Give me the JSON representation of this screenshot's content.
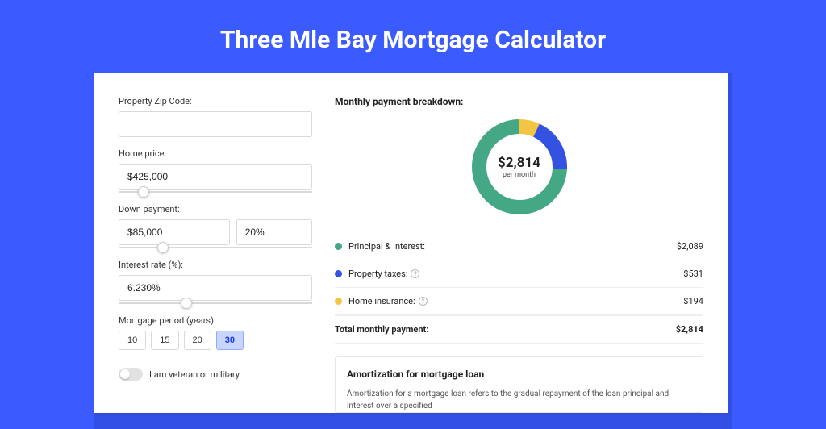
{
  "page": {
    "title": "Three Mle Bay Mortgage Calculator",
    "background_color": "#3b5bff",
    "card_bg": "#ffffff",
    "card_shadow_color": "#3350e6"
  },
  "form": {
    "zip": {
      "label": "Property Zip Code:",
      "value": ""
    },
    "home_price": {
      "label": "Home price:",
      "value": "$425,000",
      "slider_pos_pct": 10
    },
    "down_payment": {
      "label": "Down payment:",
      "value": "$85,000",
      "percent": "20%",
      "slider_pos_pct": 20
    },
    "interest_rate": {
      "label": "Interest rate (%):",
      "value": "6.230%",
      "slider_pos_pct": 32
    },
    "mortgage_period": {
      "label": "Mortgage period (years):",
      "options": [
        "10",
        "15",
        "20",
        "30"
      ],
      "selected": "30"
    },
    "veteran": {
      "label": "I am veteran or military",
      "checked": false
    }
  },
  "breakdown": {
    "title": "Monthly payment breakdown:",
    "donut": {
      "center_amount": "$2,814",
      "center_sub": "per month",
      "segments": [
        {
          "key": "principal_interest",
          "label": "Principal & Interest:",
          "value": "$2,089",
          "color": "#44a884",
          "fraction": 0.742
        },
        {
          "key": "property_taxes",
          "label": "Property taxes:",
          "value": "$531",
          "color": "#3452e1",
          "fraction": 0.189,
          "info": true
        },
        {
          "key": "home_insurance",
          "label": "Home insurance:",
          "value": "$194",
          "color": "#f4c444",
          "fraction": 0.069,
          "info": true
        }
      ],
      "stroke_width": 18
    },
    "total": {
      "label": "Total monthly payment:",
      "value": "$2,814"
    }
  },
  "amortization": {
    "title": "Amortization for mortgage loan",
    "text": "Amortization for a mortgage loan refers to the gradual repayment of the loan principal and interest over a specified"
  }
}
